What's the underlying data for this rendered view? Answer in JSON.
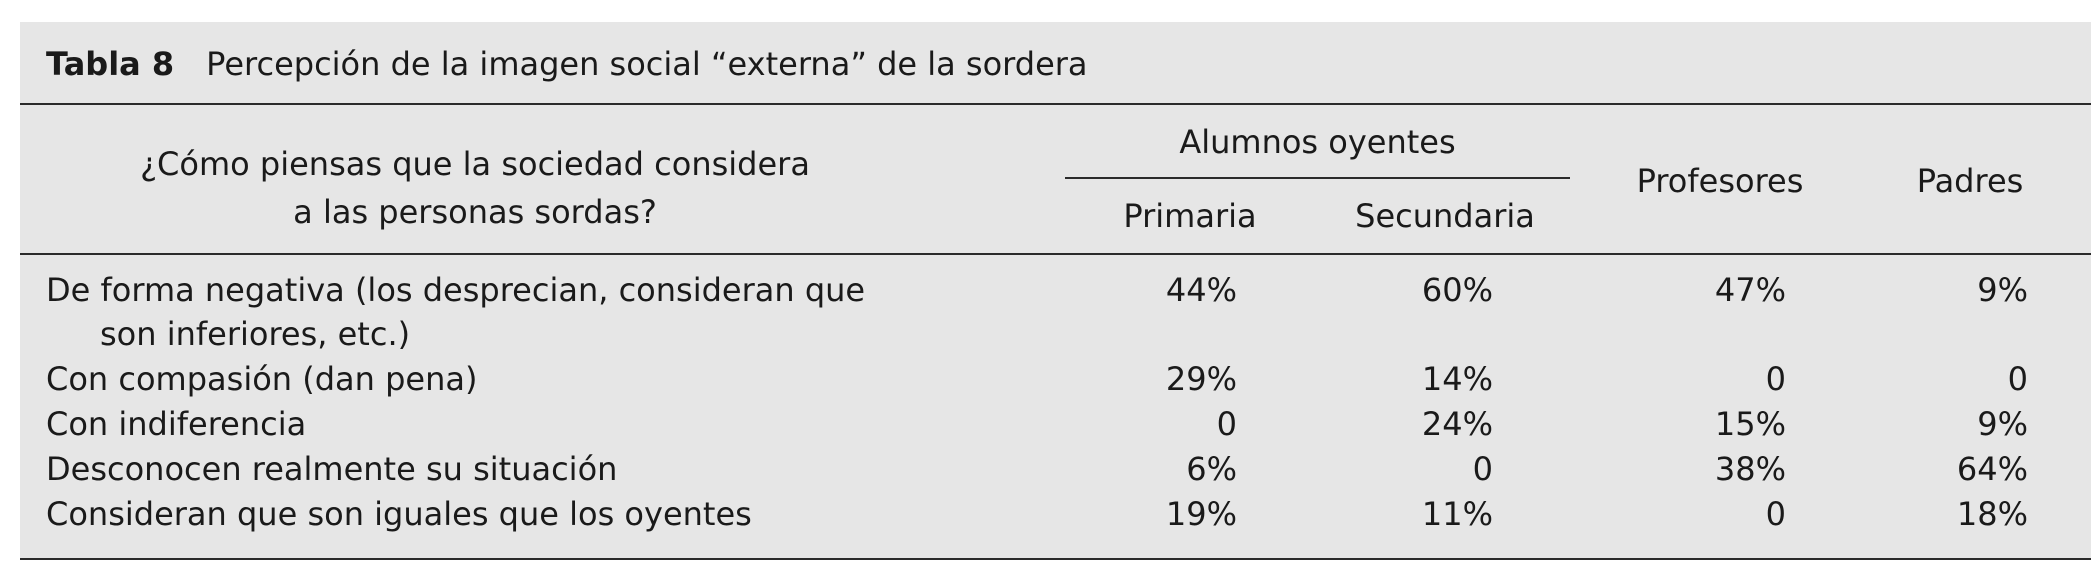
{
  "caption": {
    "label": "Tabla 8",
    "title": "Percepción de la imagen social “externa” de la sordera"
  },
  "header": {
    "question_line1": "¿Cómo piensas que la sociedad considera",
    "question_line2": "a las personas sordas?",
    "group": "Alumnos oyentes",
    "primaria": "Primaria",
    "secundaria": "Secundaria",
    "profesores": "Profesores",
    "padres": "Padres"
  },
  "rows": [
    {
      "label_line1": "De forma negativa (los desprecian, consideran que",
      "label_line2": "son inferiores, etc.)",
      "primaria": "44%",
      "secundaria": "60%",
      "profesores": "47%",
      "padres": "9%"
    },
    {
      "label_line1": "Con compasión (dan pena)",
      "primaria": "29%",
      "secundaria": "14%",
      "profesores": "0",
      "padres": "0"
    },
    {
      "label_line1": "Con indiferencia",
      "primaria": "0",
      "secundaria": "24%",
      "profesores": "15%",
      "padres": "9%"
    },
    {
      "label_line1": "Desconocen realmente su situación",
      "primaria": "6%",
      "secundaria": "0",
      "profesores": "38%",
      "padres": "64%"
    },
    {
      "label_line1": "Consideran que son iguales que los oyentes",
      "primaria": "19%",
      "secundaria": "11%",
      "profesores": "0",
      "padres": "18%"
    }
  ]
}
